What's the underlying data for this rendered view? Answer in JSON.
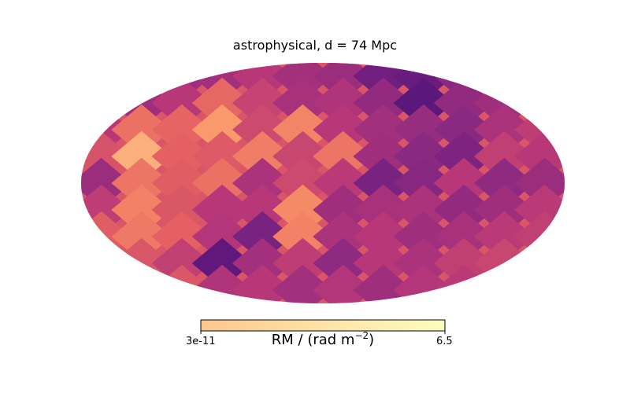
{
  "chart_data": {
    "type": "heatmap",
    "projection": "mollweide",
    "title": "astrophysical, d = 74 Mpc",
    "colorbar": {
      "label_main": "RM / (rad m",
      "label_exp": "−2",
      "label_close": ")",
      "min": 3e-11,
      "max": 6.5,
      "tick_min_label": "3e-11",
      "tick_max_label": "6.5",
      "colormap": "magma"
    },
    "grid_note": "approximate HEALPix-like pixel values in RM units (rows north to south, columns longitude left to right)",
    "values": [
      [
        1.2,
        1.4,
        2.0,
        2.1,
        2.6,
        2.1,
        1.9,
        0.9,
        0.7,
        1.5,
        2.1,
        2.5
      ],
      [
        0.6,
        2.0,
        2.6,
        4.1,
        3.0,
        2.2,
        2.4,
        1.7,
        0.4,
        1.7,
        2.0,
        3.1
      ],
      [
        2.6,
        4.3,
        4.0,
        5.3,
        3.2,
        4.8,
        2.6,
        2.1,
        1.8,
        1.5,
        2.3,
        2.8
      ],
      [
        3.5,
        5.8,
        3.9,
        3.7,
        4.6,
        3.1,
        4.4,
        2.0,
        1.5,
        1.2,
        2.9,
        2.6
      ],
      [
        1.9,
        4.4,
        3.8,
        4.3,
        2.3,
        3.2,
        2.7,
        1.1,
        1.4,
        2.6,
        1.6,
        1.9
      ],
      [
        2.8,
        4.7,
        3.6,
        2.6,
        2.6,
        4.9,
        2.0,
        2.2,
        2.3,
        1.7,
        2.0,
        2.7
      ],
      [
        3.8,
        4.5,
        3.9,
        2.5,
        1.1,
        4.7,
        2.3,
        2.6,
        2.0,
        2.2,
        2.7,
        2.9
      ],
      [
        3.3,
        3.6,
        2.9,
        0.5,
        2.1,
        2.8,
        1.6,
        2.6,
        2.3,
        2.9,
        3.1,
        3.4
      ],
      [
        3.1,
        3.8,
        3.6,
        2.4,
        2.6,
        2.1,
        2.5,
        2.0,
        2.5,
        2.7,
        3.0,
        3.2
      ]
    ]
  }
}
